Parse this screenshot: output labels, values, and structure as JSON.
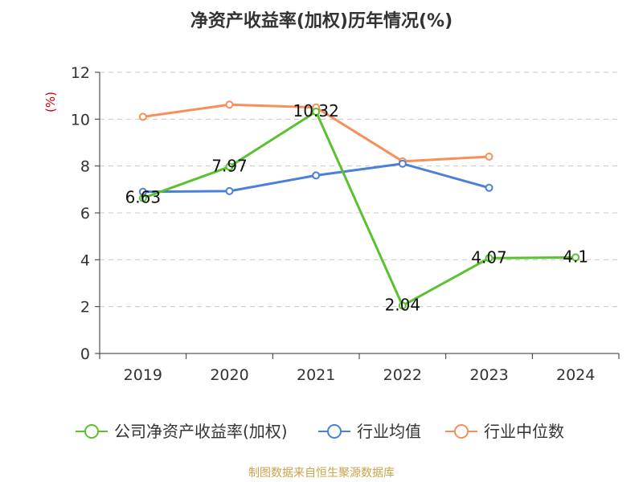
{
  "chart_data": {
    "type": "line",
    "title": "净资产收益率(加权)历年情况(%)",
    "ylabel": "(%)",
    "xlabel": "",
    "categories": [
      "2019",
      "2020",
      "2021",
      "2022",
      "2023",
      "2024"
    ],
    "ylim": [
      0,
      12
    ],
    "yticks": [
      0,
      2,
      4,
      6,
      8,
      10,
      12
    ],
    "grid": true,
    "legend_position": "bottom",
    "series": [
      {
        "name": "公司净资产收益率(加权)",
        "color": "#5ac12f",
        "values": [
          6.63,
          7.97,
          10.32,
          2.04,
          4.07,
          4.1
        ],
        "labels": [
          "6.63",
          "7.97",
          "10.32",
          "2.04",
          "4.07",
          "4.1"
        ],
        "show_labels": true
      },
      {
        "name": "行业均值",
        "color": "#4a7fdc",
        "values": [
          6.9,
          6.93,
          7.6,
          8.1,
          7.07,
          null
        ],
        "show_labels": false
      },
      {
        "name": "行业中位数",
        "color": "#f78f5a",
        "values": [
          10.1,
          10.62,
          10.5,
          8.2,
          8.4,
          null
        ],
        "show_labels": false
      }
    ]
  },
  "footer": {
    "source_text": "制图数据来自恒生聚源数据库",
    "source_color": "#c8a44a"
  },
  "colors": {
    "ylabel_color": "#cc0000",
    "axis_color": "#333333",
    "grid_color": "#c8c8c8"
  }
}
